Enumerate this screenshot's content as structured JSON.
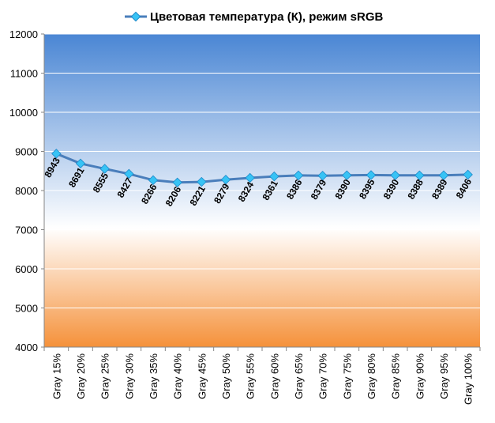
{
  "chart_data": {
    "type": "line",
    "title": "",
    "xlabel": "",
    "ylabel": "",
    "ylim": [
      4000,
      12000
    ],
    "yticks": [
      4000,
      5000,
      6000,
      7000,
      8000,
      9000,
      10000,
      11000,
      12000
    ],
    "grid": true,
    "legend_position": "top",
    "categories": [
      "Gray 15%",
      "Gray 20%",
      "Gray 25%",
      "Gray 30%",
      "Gray 35%",
      "Gray 40%",
      "Gray 45%",
      "Gray 50%",
      "Gray 55%",
      "Gray 60%",
      "Gray 65%",
      "Gray 70%",
      "Gray 75%",
      "Gray 80%",
      "Gray 85%",
      "Gray 90%",
      "Gray 95%",
      "Gray 100%"
    ],
    "series": [
      {
        "name": "Цветовая температура (К), режим sRGB",
        "values": [
          8943,
          8691,
          8555,
          8427,
          8266,
          8206,
          8221,
          8279,
          8324,
          8361,
          8386,
          8379,
          8390,
          8395,
          8390,
          8388,
          8389,
          8406
        ],
        "color": "#4a7ebb"
      }
    ],
    "background_gradient": [
      "#4a86d4",
      "#ffffff",
      "#f5913a"
    ]
  }
}
